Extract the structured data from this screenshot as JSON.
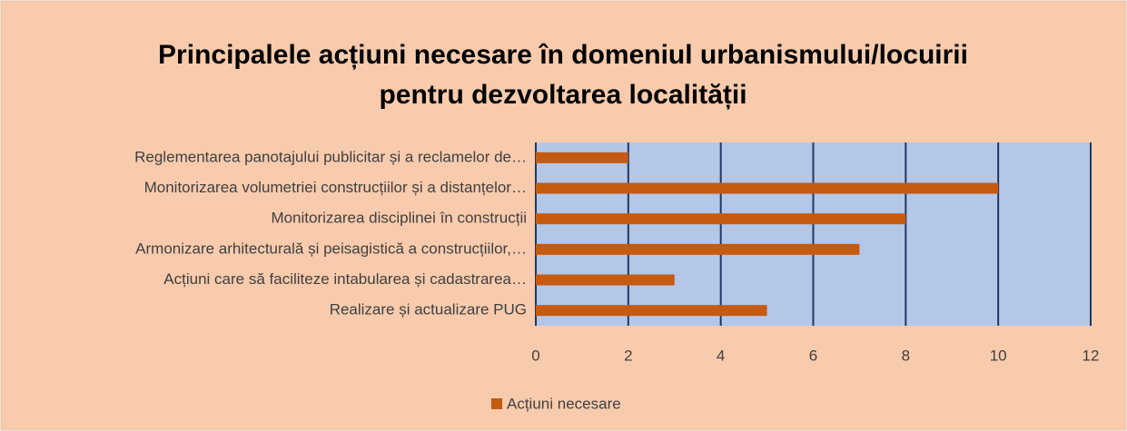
{
  "chart_data": {
    "type": "bar",
    "orientation": "horizontal",
    "title": [
      "Principalele acțiuni necesare în domeniul urbanismului/locuirii",
      "pentru dezvoltarea localității"
    ],
    "categories": [
      "Reglementarea panotajului publicitar și a reclamelor de…",
      "Monitorizarea volumetriei construcțiilor și a distanțelor…",
      "Monitorizarea disciplinei în construcții",
      "Armonizare arhitecturală și peisagistică a construcțiilor,…",
      "Acțiuni care să faciliteze intabularea și cadastrarea…",
      "Realizare și actualizare PUG"
    ],
    "series": [
      {
        "name": "Acțiuni necesare",
        "color": "#c55a11",
        "values": [
          2,
          10,
          8,
          7,
          3,
          5
        ]
      }
    ],
    "xlim": [
      0,
      12
    ],
    "xticks": [
      0,
      2,
      4,
      6,
      8,
      10,
      12
    ],
    "grid": true,
    "legend": "bottom"
  }
}
